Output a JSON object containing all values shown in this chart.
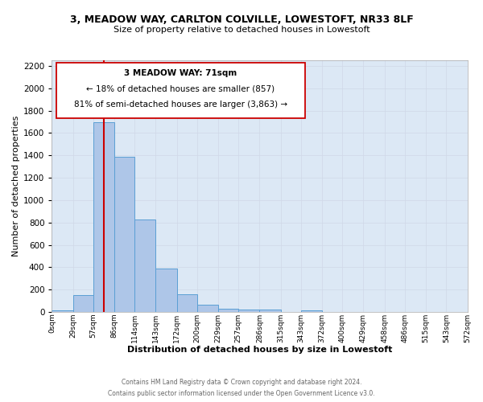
{
  "title": "3, MEADOW WAY, CARLTON COLVILLE, LOWESTOFT, NR33 8LF",
  "subtitle": "Size of property relative to detached houses in Lowestoft",
  "xlabel": "Distribution of detached houses by size in Lowestoft",
  "ylabel": "Number of detached properties",
  "bar_color": "#aec6e8",
  "bar_edge_color": "#5a9fd4",
  "grid_color": "#d0d8e8",
  "axes_bg_color": "#dce8f5",
  "background_color": "#ffffff",
  "property_line_x": 71,
  "property_line_color": "#cc0000",
  "bin_edges": [
    0,
    29,
    57,
    86,
    114,
    143,
    172,
    200,
    229,
    257,
    286,
    315,
    343,
    372,
    400,
    429,
    458,
    486,
    515,
    543,
    572
  ],
  "bin_labels": [
    "0sqm",
    "29sqm",
    "57sqm",
    "86sqm",
    "114sqm",
    "143sqm",
    "172sqm",
    "200sqm",
    "229sqm",
    "257sqm",
    "286sqm",
    "315sqm",
    "343sqm",
    "372sqm",
    "400sqm",
    "429sqm",
    "458sqm",
    "486sqm",
    "515sqm",
    "543sqm",
    "572sqm"
  ],
  "bar_heights": [
    15,
    155,
    1700,
    1390,
    830,
    385,
    160,
    65,
    30,
    20,
    20,
    0,
    15,
    0,
    0,
    0,
    0,
    0,
    0,
    0
  ],
  "ylim": [
    0,
    2250
  ],
  "yticks": [
    0,
    200,
    400,
    600,
    800,
    1000,
    1200,
    1400,
    1600,
    1800,
    2000,
    2200
  ],
  "ann_line1": "3 MEADOW WAY: 71sqm",
  "ann_line2": "← 18% of detached houses are smaller (857)",
  "ann_line3": "81% of semi-detached houses are larger (3,863) →",
  "footer_line1": "Contains HM Land Registry data © Crown copyright and database right 2024.",
  "footer_line2": "Contains public sector information licensed under the Open Government Licence v3.0."
}
